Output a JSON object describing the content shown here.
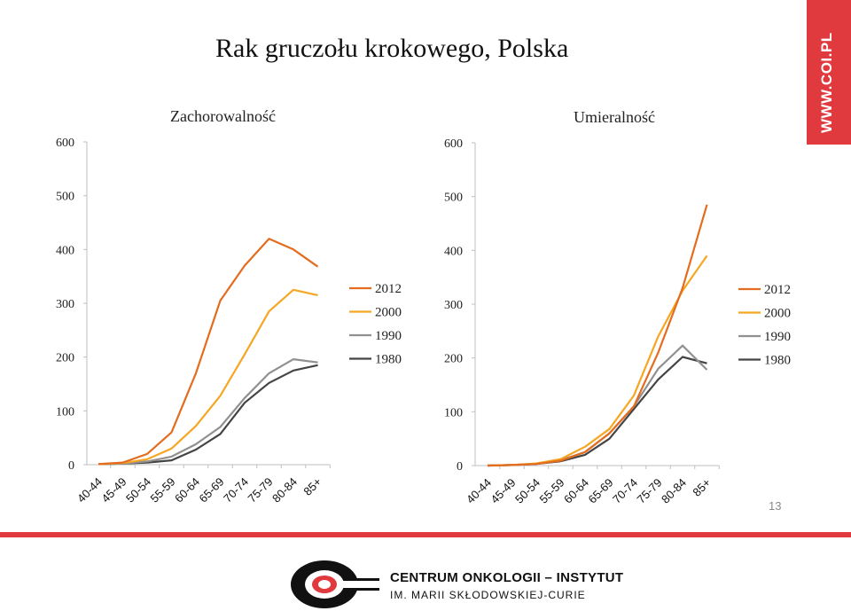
{
  "title": "Rak gruczołu krokowego, Polska",
  "side_tab": "WWW.COI.PL",
  "page_number": "13",
  "footer": {
    "logo_line1": "CENTRUM ONKOLOGII – INSTYTUT",
    "logo_line2": "IM. MARII SKŁODOWSKIEJ-CURIE"
  },
  "colors": {
    "accent": "#e03a3e",
    "s2012": "#e36c1f",
    "s2000": "#f5a623",
    "s1990": "#909090",
    "s1980": "#444444"
  },
  "chart_data": [
    {
      "type": "line",
      "title": "Zachorowalność",
      "categories": [
        "40-44",
        "45-49",
        "50-54",
        "55-59",
        "60-64",
        "65-69",
        "70-74",
        "75-79",
        "80-84",
        "85+"
      ],
      "ylim": [
        0,
        600
      ],
      "yticks": [
        0,
        100,
        200,
        300,
        400,
        500,
        600
      ],
      "legend_position": "right",
      "series": [
        {
          "name": "2012",
          "values": [
            1,
            4,
            20,
            60,
            170,
            305,
            370,
            420,
            400,
            368
          ]
        },
        {
          "name": "2000",
          "values": [
            1,
            3,
            10,
            30,
            72,
            128,
            205,
            285,
            325,
            315
          ]
        },
        {
          "name": "1990",
          "values": [
            1,
            2,
            6,
            15,
            38,
            70,
            124,
            170,
            196,
            190
          ]
        },
        {
          "name": "1980",
          "values": [
            1,
            2,
            4,
            8,
            28,
            57,
            115,
            152,
            175,
            185
          ]
        }
      ]
    },
    {
      "type": "line",
      "title": "Umieralność",
      "categories": [
        "40-44",
        "45-49",
        "50-54",
        "55-59",
        "60-64",
        "65-69",
        "70-74",
        "75-79",
        "80-84",
        "85+"
      ],
      "ylim": [
        0,
        600
      ],
      "yticks": [
        0,
        100,
        200,
        300,
        400,
        500,
        600
      ],
      "legend_position": "right",
      "series": [
        {
          "name": "2012",
          "values": [
            0,
            1,
            3,
            9,
            25,
            60,
            110,
            210,
            330,
            485
          ]
        },
        {
          "name": "2000",
          "values": [
            0,
            1,
            4,
            12,
            35,
            68,
            130,
            240,
            325,
            390
          ]
        },
        {
          "name": "1990",
          "values": [
            0,
            1,
            3,
            10,
            25,
            60,
            110,
            180,
            223,
            178
          ]
        },
        {
          "name": "1980",
          "values": [
            0,
            1,
            3,
            8,
            20,
            50,
            105,
            160,
            202,
            190
          ]
        }
      ]
    }
  ]
}
